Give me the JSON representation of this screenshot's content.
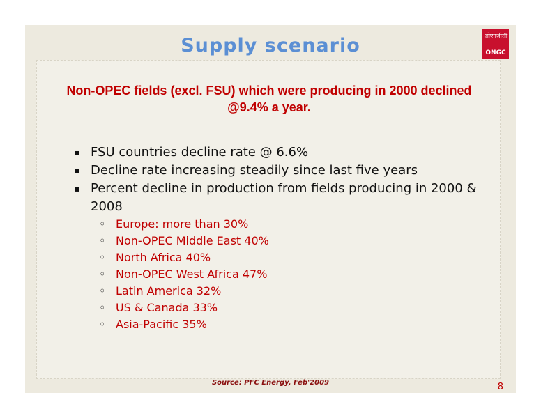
{
  "title": "Supply scenario",
  "logo": {
    "hindi": "ओएनजीसी",
    "text": "ONGC"
  },
  "headline": "Non-OPEC fields (excl. FSU) which were producing in 2000 declined @9.4% a year.",
  "bullets": [
    "FSU countries decline rate @ 6.6%",
    "Decline rate increasing steadily since last five years",
    "Percent decline in production from fields producing in 2000 & 2008"
  ],
  "sub_bullets": [
    "Europe: more than 30%",
    "Non-OPEC Middle East 40%",
    "North Africa 40%",
    "Non-OPEC West Africa 47%",
    "Latin America 32%",
    "US & Canada 33%",
    "Asia-Pacific 35%"
  ],
  "source": "Source: PFC Energy, Feb'2009",
  "page_number": "8"
}
